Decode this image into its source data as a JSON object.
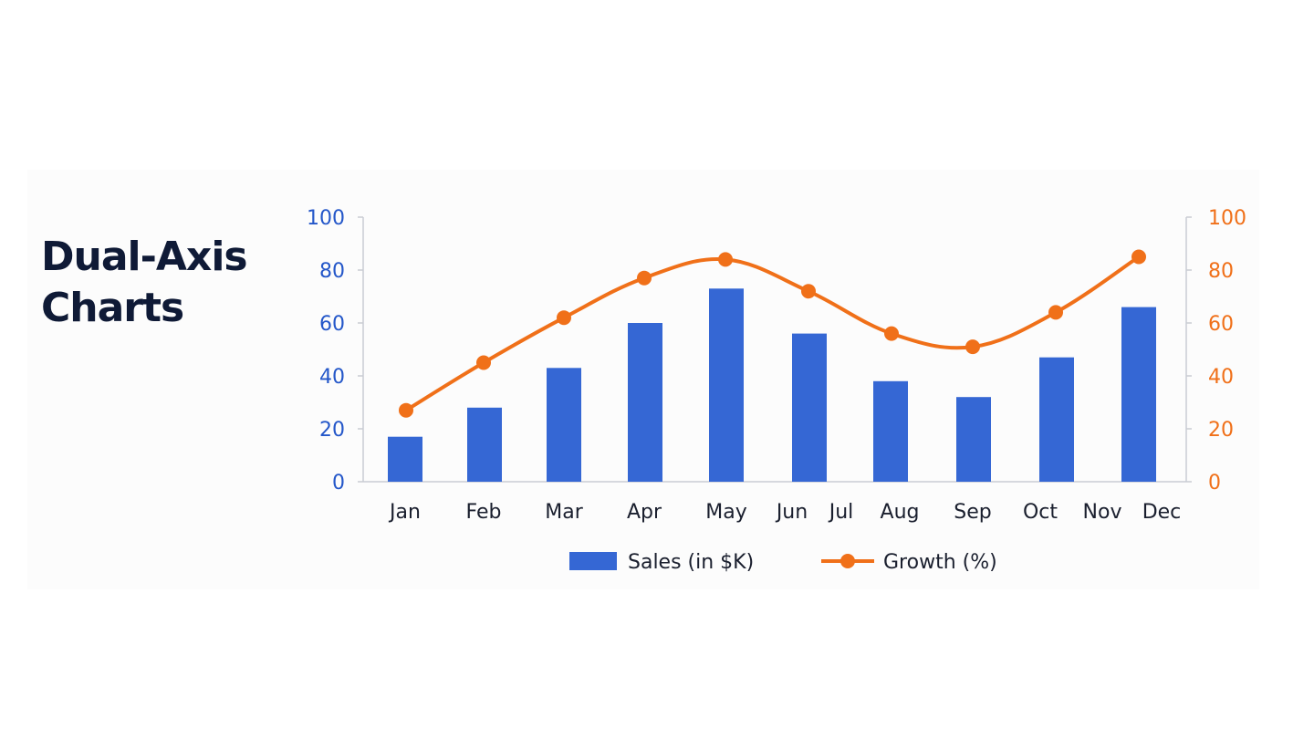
{
  "page": {
    "title_line1": "Dual-Axis",
    "title_line2": "Charts"
  },
  "colors": {
    "bar": "#3567d4",
    "line": "#f07019",
    "axis": "#c9ccd3",
    "left_tick": "#2457c9",
    "right_tick": "#f07019",
    "title": "#0f1a36"
  },
  "chart_data": {
    "type": "bar+line",
    "categories": [
      "Jan",
      "Feb",
      "Mar",
      "Apr",
      "May",
      "Jun",
      "Jul",
      "Aug",
      "Sep",
      "Oct",
      "Nov",
      "Dec"
    ],
    "series": [
      {
        "name": "Sales (in $K)",
        "type": "bar",
        "axis": "left",
        "values": [
          17,
          28,
          43,
          60,
          73,
          56,
          null,
          38,
          32,
          47,
          null,
          66
        ]
      },
      {
        "name": "Growth (%)",
        "type": "line",
        "axis": "right",
        "values": [
          27,
          45,
          62,
          77,
          84,
          72,
          null,
          56,
          51,
          64,
          null,
          85
        ]
      }
    ],
    "ylim_left": [
      0,
      100
    ],
    "ylim_right": [
      0,
      100
    ],
    "yticks_left": [
      "0",
      "20",
      "40",
      "60",
      "80",
      "100"
    ],
    "yticks_right": [
      "0",
      "20",
      "40",
      "60",
      "80",
      "100"
    ],
    "grid": false,
    "legend_position": "bottom-center"
  }
}
